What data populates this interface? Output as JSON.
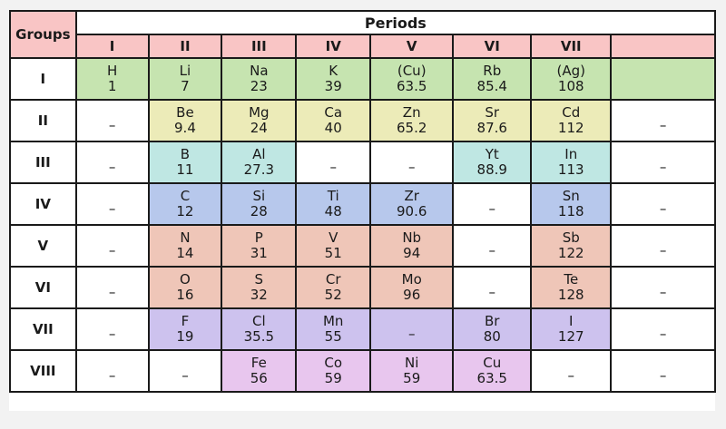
{
  "header": {
    "groups_label": "Groups",
    "periods_label": "Periods",
    "periods": [
      "I",
      "II",
      "III",
      "IV",
      "V",
      "VI",
      "VII",
      ""
    ]
  },
  "dash": "–",
  "rows": [
    {
      "group": "I",
      "cells": [
        {
          "sym": "H",
          "w": "1",
          "color": "g"
        },
        {
          "sym": "Li",
          "w": "7",
          "color": "g"
        },
        {
          "sym": "Na",
          "w": "23",
          "color": "g"
        },
        {
          "sym": "K",
          "w": "39",
          "color": "g"
        },
        {
          "sym": "(Cu)",
          "w": "63.5",
          "color": "g"
        },
        {
          "sym": "Rb",
          "w": "85.4",
          "color": "g"
        },
        {
          "sym": "(Ag)",
          "w": "108",
          "color": "g"
        },
        {
          "sym": "",
          "w": "",
          "color": "g"
        }
      ]
    },
    {
      "group": "II",
      "cells": [
        {
          "dash": true
        },
        {
          "sym": "Be",
          "w": "9.4",
          "color": "y"
        },
        {
          "sym": "Mg",
          "w": "24",
          "color": "y"
        },
        {
          "sym": "Ca",
          "w": "40",
          "color": "y"
        },
        {
          "sym": "Zn",
          "w": "65.2",
          "color": "y"
        },
        {
          "sym": "Sr",
          "w": "87.6",
          "color": "y"
        },
        {
          "sym": "Cd",
          "w": "112",
          "color": "y"
        },
        {
          "dash": true
        }
      ]
    },
    {
      "group": "III",
      "cells": [
        {
          "dash": true
        },
        {
          "sym": "B",
          "w": "11",
          "color": "c"
        },
        {
          "sym": "Al",
          "w": "27.3",
          "color": "c"
        },
        {
          "dash": true
        },
        {
          "dash": true
        },
        {
          "sym": "Yt",
          "w": "88.9",
          "color": "c"
        },
        {
          "sym": "In",
          "w": "113",
          "color": "c"
        },
        {
          "dash": true
        }
      ]
    },
    {
      "group": "IV",
      "cells": [
        {
          "dash": true
        },
        {
          "sym": "C",
          "w": "12",
          "color": "b"
        },
        {
          "sym": "Si",
          "w": "28",
          "color": "b"
        },
        {
          "sym": "Ti",
          "w": "48",
          "color": "b"
        },
        {
          "sym": "Zr",
          "w": "90.6",
          "color": "b"
        },
        {
          "dash": true
        },
        {
          "sym": "Sn",
          "w": "118",
          "color": "b"
        },
        {
          "dash": true
        }
      ]
    },
    {
      "group": "V",
      "cells": [
        {
          "dash": true
        },
        {
          "sym": "N",
          "w": "14",
          "color": "o"
        },
        {
          "sym": "P",
          "w": "31",
          "color": "o"
        },
        {
          "sym": "V",
          "w": "51",
          "color": "o"
        },
        {
          "sym": "Nb",
          "w": "94",
          "color": "o"
        },
        {
          "dash": true
        },
        {
          "sym": "Sb",
          "w": "122",
          "color": "o"
        },
        {
          "dash": true
        }
      ]
    },
    {
      "group": "VI",
      "cells": [
        {
          "dash": true
        },
        {
          "sym": "O",
          "w": "16",
          "color": "o"
        },
        {
          "sym": "S",
          "w": "32",
          "color": "o"
        },
        {
          "sym": "Cr",
          "w": "52",
          "color": "o"
        },
        {
          "sym": "Mo",
          "w": "96",
          "color": "o"
        },
        {
          "dash": true
        },
        {
          "sym": "Te",
          "w": "128",
          "color": "o"
        },
        {
          "dash": true
        }
      ]
    },
    {
      "group": "VII",
      "cells": [
        {
          "dash": true
        },
        {
          "sym": "F",
          "w": "19",
          "color": "p"
        },
        {
          "sym": "Cl",
          "w": "35.5",
          "color": "p"
        },
        {
          "sym": "Mn",
          "w": "55",
          "color": "p"
        },
        {
          "dash": true,
          "color": "p"
        },
        {
          "sym": "Br",
          "w": "80",
          "color": "p"
        },
        {
          "sym": "I",
          "w": "127",
          "color": "p"
        },
        {
          "dash": true
        }
      ]
    },
    {
      "group": "VIII",
      "cells": [
        {
          "dash": true
        },
        {
          "dash": true
        },
        {
          "sym": "Fe",
          "w": "56",
          "color": "m"
        },
        {
          "sym": "Co",
          "w": "59",
          "color": "m"
        },
        {
          "sym": "Ni",
          "w": "59",
          "color": "m"
        },
        {
          "sym": "Cu",
          "w": "63.5",
          "color": "m"
        },
        {
          "dash": true
        },
        {
          "dash": true
        }
      ]
    }
  ]
}
